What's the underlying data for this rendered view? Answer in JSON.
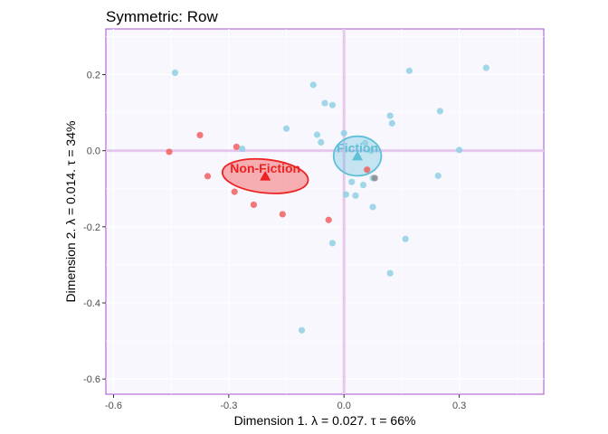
{
  "chart_data": {
    "type": "scatter",
    "title": "Symmetric: Row",
    "xlabel": "Dimension 1.   λ = 0.027.  τ = 66%",
    "ylabel": "Dimension 2.  λ = 0.014.  τ = 34%",
    "xlim": [
      -0.62,
      0.52
    ],
    "ylim": [
      -0.64,
      0.32
    ],
    "x_ticks": [
      -0.6,
      -0.3,
      0.0,
      0.3
    ],
    "y_ticks": [
      0.2,
      0.0,
      -0.2,
      -0.4,
      -0.6
    ],
    "x_tick_labels": [
      "-0.6",
      "-0.3",
      "0.0",
      "0.3"
    ],
    "y_tick_labels": [
      "0.2",
      "0.0",
      "-0.2",
      "-0.4",
      "-0.6"
    ],
    "colors": {
      "fiction": "#5fc0d8",
      "fiction_point": "#8fd0e4",
      "nonfiction": "#ee2222",
      "nonfiction_point": "#f06060",
      "reference_line": "#e6c8ee",
      "panel_border": "#a64dd1",
      "panel_bg": "#f9f7fe",
      "grid": "#ffffff"
    },
    "series": [
      {
        "name": "Non-Fiction",
        "centroid": [
          -0.205,
          -0.067
        ],
        "ellipse": {
          "rx": 0.112,
          "ry": 0.044,
          "angle_deg": 6
        },
        "points": [
          [
            -0.455,
            -0.003
          ],
          [
            -0.375,
            0.041
          ],
          [
            -0.355,
            -0.067
          ],
          [
            -0.28,
            0.01
          ],
          [
            -0.285,
            -0.108
          ],
          [
            -0.235,
            -0.142
          ],
          [
            -0.16,
            -0.167
          ],
          [
            -0.04,
            -0.182
          ],
          [
            0.06,
            -0.05
          ]
        ]
      },
      {
        "name": "Fiction",
        "centroid": [
          0.035,
          -0.014
        ],
        "ellipse": {
          "rx": 0.062,
          "ry": 0.052,
          "angle_deg": 0
        },
        "points": [
          [
            -0.44,
            0.205
          ],
          [
            0.17,
            0.21
          ],
          [
            0.37,
            0.218
          ],
          [
            -0.08,
            0.173
          ],
          [
            -0.05,
            0.125
          ],
          [
            -0.03,
            0.12
          ],
          [
            0.12,
            0.092
          ],
          [
            0.25,
            0.104
          ],
          [
            0.125,
            0.072
          ],
          [
            -0.15,
            0.058
          ],
          [
            -0.07,
            0.042
          ],
          [
            0.0,
            0.046
          ],
          [
            -0.06,
            0.022
          ],
          [
            0.055,
            0.02
          ],
          [
            -0.265,
            0.005
          ],
          [
            0.3,
            0.002
          ],
          [
            0.07,
            0.0
          ],
          [
            0.245,
            -0.066
          ],
          [
            0.02,
            -0.082
          ],
          [
            0.05,
            -0.09
          ],
          [
            0.075,
            -0.072
          ],
          [
            0.005,
            -0.115
          ],
          [
            0.03,
            -0.118
          ],
          [
            0.075,
            -0.148
          ],
          [
            -0.03,
            -0.243
          ],
          [
            0.16,
            -0.232
          ],
          [
            0.12,
            -0.322
          ],
          [
            -0.11,
            -0.472
          ]
        ]
      }
    ],
    "extra_points": [
      {
        "x": 0.08,
        "y": -0.072,
        "color": "#8a8a8a"
      }
    ]
  }
}
